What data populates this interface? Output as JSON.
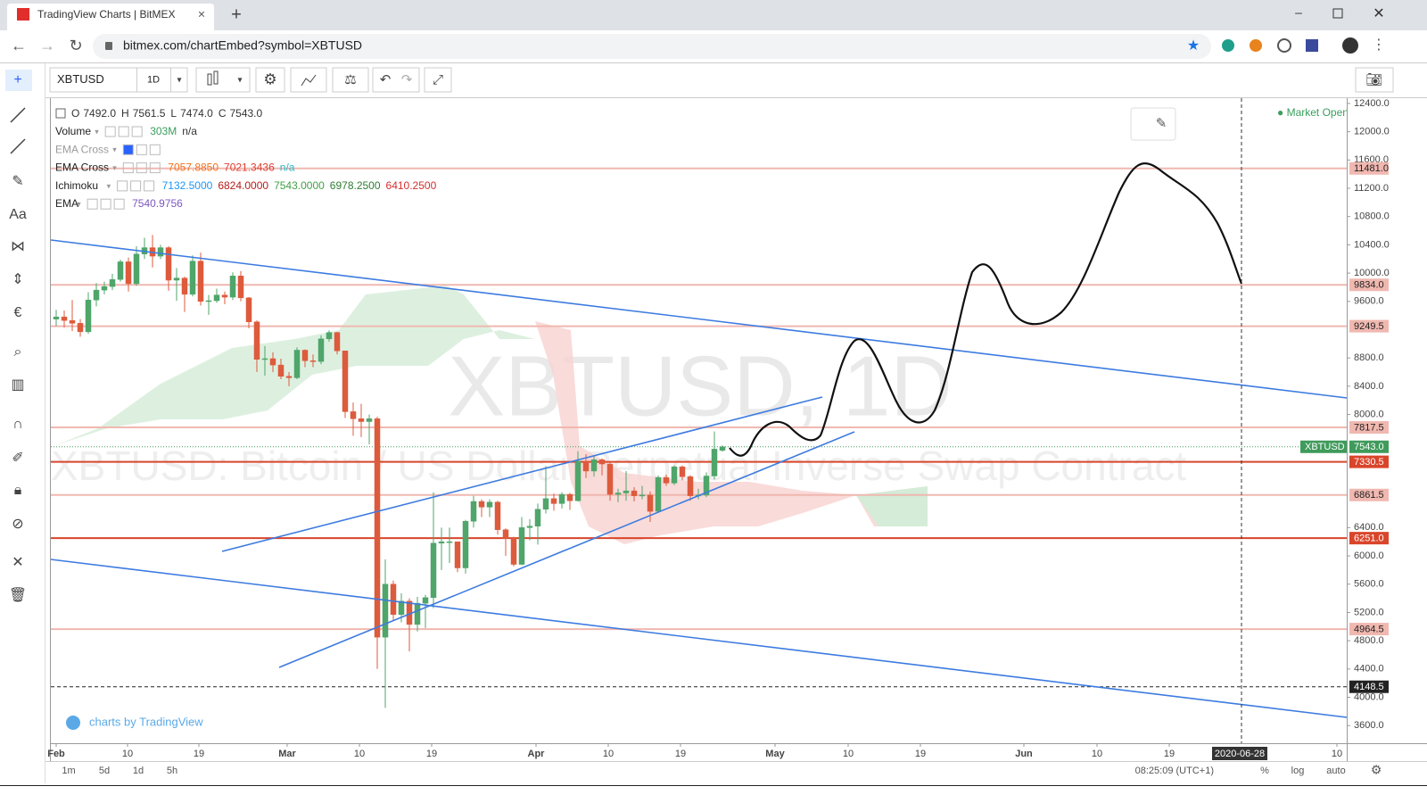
{
  "browser": {
    "tab_title": "TradingView Charts | BitMEX",
    "url": "bitmex.com/chartEmbed?symbol=XBTUSD"
  },
  "toolbar": {
    "symbol": "XBTUSD",
    "interval": "1D"
  },
  "legend": {
    "ohlc": [
      {
        "key": "O",
        "value": "7492.0"
      },
      {
        "key": "H",
        "value": "7561.5"
      },
      {
        "key": "L",
        "value": "7474.0"
      },
      {
        "key": "C",
        "value": "7543.0"
      }
    ],
    "indicators": [
      {
        "name": "Volume",
        "values": [
          "303M",
          "n/a"
        ],
        "colors": [
          "#3a9e5c",
          "#333333"
        ]
      },
      {
        "name": "EMA Cross",
        "values": [
          "n/a"
        ],
        "colors": [
          "#2ab7c9"
        ],
        "faded": true
      },
      {
        "name": "EMA Cross",
        "values": [
          "7057.8850",
          "7021.3436",
          "n/a"
        ],
        "colors": [
          "#f2711c",
          "#e03c31",
          "#2ab7c9"
        ]
      },
      {
        "name": "Ichimoku",
        "values": [
          "7132.5000",
          "6824.0000",
          "7543.0000",
          "6978.2500",
          "6410.2500"
        ],
        "colors": [
          "#2196f3",
          "#b71c1c",
          "#43a047",
          "#2e7d32",
          "#d32f2f"
        ]
      },
      {
        "name": "EMA",
        "values": [
          "7540.9756"
        ],
        "colors": [
          "#7e57c2"
        ]
      }
    ]
  },
  "market_status": "Market Open",
  "watermark": {
    "symbol": "XBTUSD, 1D",
    "description": "XBTUSD: Bitcoin / US Dollar Perpetual Inverse Swap Contract"
  },
  "branding": "charts by TradingView",
  "chart_data": {
    "type": "candlestick",
    "open": [
      9350,
      9380,
      9330,
      9290,
      9170,
      9620,
      9760,
      9810,
      9910,
      10160,
      9850,
      10270,
      10360,
      10240,
      10360,
      9900,
      9930,
      9700,
      10170,
      9600,
      9610,
      9690,
      9660,
      9960,
      9650,
      9310,
      8780,
      8790,
      8700,
      8540,
      8520,
      8910,
      8760,
      8750,
      9070,
      9160,
      8900,
      8040,
      7940,
      7900,
      7940,
      4850,
      5600,
      5170,
      5360,
      5030,
      5330,
      5410,
      6180,
      6200,
      6200,
      5830,
      6490,
      6770,
      6690,
      6760,
      6370,
      6250,
      5880,
      6400,
      6420,
      6660,
      6810,
      6740,
      6870,
      6780,
      7340,
      7200,
      7360,
      7300,
      6870,
      6890,
      6920,
      6850,
      6860,
      6630,
      7110,
      7030,
      7260,
      7120,
      6850,
      6860,
      7130,
      7492
    ],
    "high": [
      9480,
      9470,
      9620,
      9350,
      9730,
      9860,
      9880,
      9990,
      10190,
      10220,
      10380,
      10500,
      10540,
      10400,
      10380,
      10070,
      9950,
      10250,
      10290,
      9690,
      9780,
      9740,
      10010,
      10030,
      9660,
      9330,
      8970,
      8880,
      8790,
      8600,
      8950,
      8920,
      8850,
      9120,
      9190,
      9170,
      8900,
      8170,
      8150,
      8000,
      7970,
      5950,
      5650,
      5470,
      5400,
      5420,
      5450,
      6900,
      6400,
      6400,
      6200,
      6510,
      6850,
      6800,
      6800,
      6780,
      6390,
      6270,
      6550,
      6520,
      6740,
      7270,
      6880,
      6900,
      6890,
      7480,
      7440,
      7420,
      7380,
      7320,
      6950,
      7200,
      6970,
      6990,
      6910,
      7140,
      7150,
      7280,
      7280,
      7140,
      6950,
      7180,
      7760,
      7561.5
    ],
    "low": [
      9250,
      9230,
      9180,
      9100,
      9140,
      9530,
      9700,
      9760,
      9880,
      9740,
      9820,
      10200,
      10080,
      10200,
      9750,
      9610,
      9450,
      9670,
      9540,
      9410,
      9580,
      9560,
      9620,
      9600,
      9220,
      8600,
      8550,
      8600,
      8500,
      8400,
      8500,
      8670,
      8670,
      8710,
      9030,
      8850,
      7950,
      7700,
      7680,
      7580,
      4400,
      3850,
      5080,
      5060,
      4650,
      4930,
      4980,
      5260,
      5800,
      5900,
      5770,
      5750,
      6400,
      6550,
      6550,
      6300,
      6000,
      5850,
      5870,
      6220,
      6160,
      6600,
      6640,
      6670,
      6650,
      6770,
      7100,
      7120,
      7140,
      6780,
      6760,
      6780,
      6770,
      6800,
      6480,
      6610,
      6990,
      7000,
      7070,
      6780,
      6800,
      6830,
      7080,
      7474
    ],
    "close": [
      9380,
      9330,
      9290,
      9170,
      9620,
      9760,
      9810,
      9910,
      10160,
      9850,
      10270,
      10360,
      10240,
      10360,
      9900,
      9930,
      9700,
      10170,
      9600,
      9610,
      9690,
      9660,
      9960,
      9650,
      9310,
      8780,
      8790,
      8700,
      8540,
      8520,
      8910,
      8760,
      8750,
      9070,
      9160,
      8900,
      8040,
      7940,
      7900,
      7940,
      4850,
      5600,
      5170,
      5360,
      5030,
      5330,
      5410,
      6180,
      6200,
      6200,
      5830,
      6490,
      6770,
      6690,
      6760,
      6370,
      6250,
      5880,
      6400,
      6420,
      6660,
      6810,
      6740,
      6870,
      6780,
      7340,
      7200,
      7360,
      7300,
      6870,
      6890,
      6920,
      6850,
      6860,
      6630,
      7110,
      7030,
      7260,
      7120,
      6850,
      6860,
      7130,
      7510,
      7543
    ],
    "colors": {
      "up": "#4fa56a",
      "down": "#dd5b3d"
    },
    "ylim": [
      3350,
      12475
    ],
    "yticks": [
      {
        "value": 12400,
        "label": "12400.0"
      },
      {
        "value": 12000,
        "label": "12000.0"
      },
      {
        "value": 11600,
        "label": "11600.0"
      },
      {
        "value": 11200,
        "label": "11200.0"
      },
      {
        "value": 10800,
        "label": "10800.0"
      },
      {
        "value": 10400,
        "label": "10400.0"
      },
      {
        "value": 10000,
        "label": "10000.0"
      },
      {
        "value": 9600,
        "label": "9600.0"
      },
      {
        "value": 8800,
        "label": "8800.0"
      },
      {
        "value": 8400,
        "label": "8400.0"
      },
      {
        "value": 8000,
        "label": "8000.0"
      },
      {
        "value": 6400,
        "label": "6400.0"
      },
      {
        "value": 6000,
        "label": "6000.0"
      },
      {
        "value": 5600,
        "label": "5600.0"
      },
      {
        "value": 5200,
        "label": "5200.0"
      },
      {
        "value": 4800,
        "label": "4800.0"
      },
      {
        "value": 4400,
        "label": "4400.0"
      },
      {
        "value": 4000,
        "label": "4000.0"
      },
      {
        "value": 3600,
        "label": "3600.0"
      }
    ],
    "price_levels": [
      {
        "value": 11481,
        "label": "11481.0",
        "color": "#f0b8b0"
      },
      {
        "value": 9834,
        "label": "9834.0",
        "color": "#f0b8b0"
      },
      {
        "value": 9249.5,
        "label": "9249.5",
        "color": "#f0b8b0"
      },
      {
        "value": 7817.5,
        "label": "7817.5",
        "color": "#f0b8b0"
      },
      {
        "value": 7330.5,
        "label": "7330.5",
        "color": "#d9452b"
      },
      {
        "value": 6861.5,
        "label": "6861.5",
        "color": "#f0b8b0"
      },
      {
        "value": 6251,
        "label": "6251.0",
        "color": "#d9452b"
      },
      {
        "value": 4964.5,
        "label": "4964.5",
        "color": "#f0b8b0"
      },
      {
        "value": 4148.5,
        "label": "4148.5",
        "color": "#222222"
      }
    ],
    "last_price": {
      "value": 7543,
      "label": "7543.0",
      "symbol": "XBTUSD",
      "color": "#3f9b5b"
    },
    "x_labels": [
      "Feb",
      "10",
      "19",
      "Mar",
      "10",
      "19",
      "Apr",
      "10",
      "19",
      "May",
      "10",
      "19",
      "Jun",
      "10",
      "19",
      "10"
    ],
    "crosshair_date": "2020-06-28"
  },
  "bottom_bar": {
    "ranges": [
      "1m",
      "5d",
      "1d",
      "5h"
    ],
    "clock": "08:25:09 (UTC+1)",
    "options": [
      "%",
      "log",
      "auto"
    ]
  }
}
